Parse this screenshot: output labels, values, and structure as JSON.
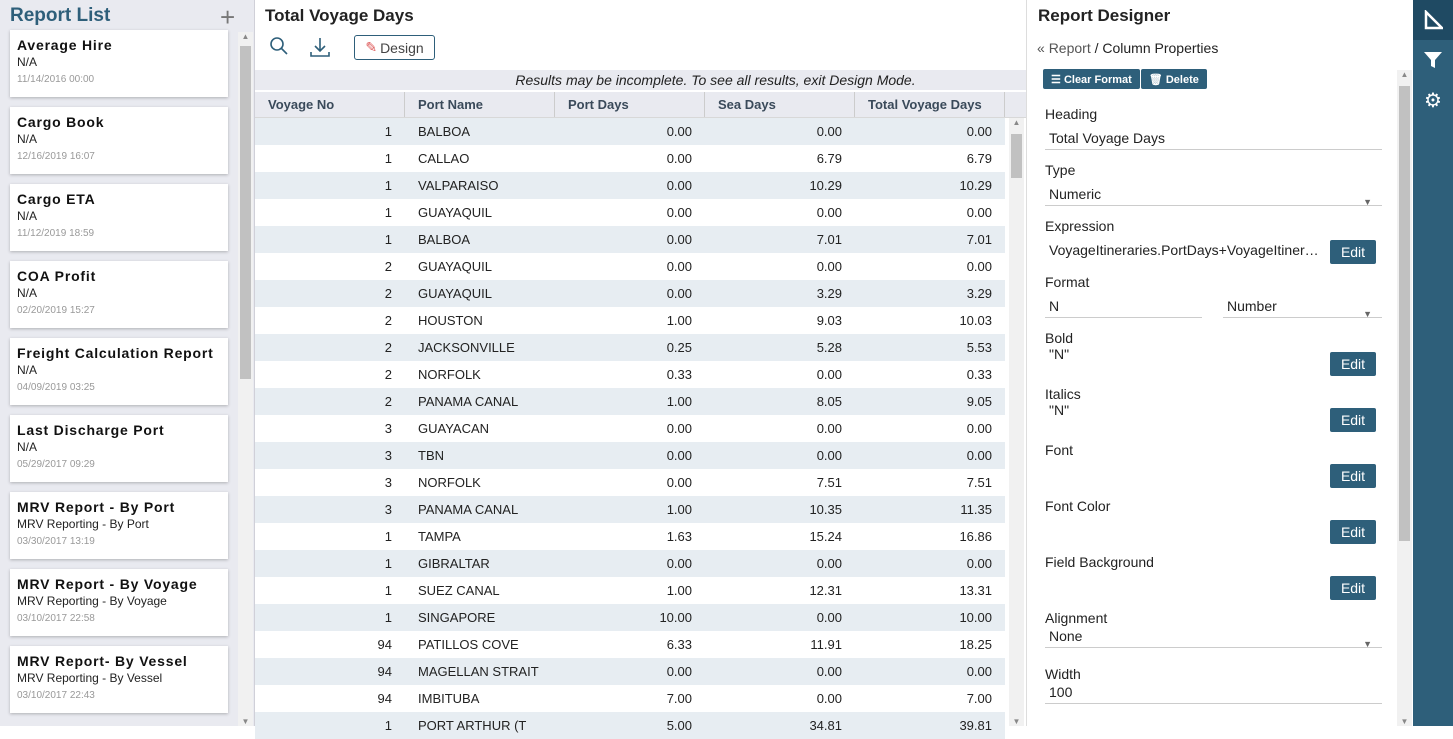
{
  "left": {
    "title": "Report List",
    "add_icon": "plus-icon",
    "reports": [
      {
        "name": "Average Hire",
        "sub": "N/A",
        "date": "11/14/2016 00:00"
      },
      {
        "name": "Cargo Book",
        "sub": "N/A",
        "date": "12/16/2019 16:07"
      },
      {
        "name": "Cargo ETA",
        "sub": "N/A",
        "date": "11/12/2019 18:59"
      },
      {
        "name": "COA Profit",
        "sub": "N/A",
        "date": "02/20/2019 15:27"
      },
      {
        "name": "Freight Calculation Report",
        "sub": "N/A",
        "date": "04/09/2019 03:25"
      },
      {
        "name": "Last Discharge Port",
        "sub": "N/A",
        "date": "05/29/2017 09:29"
      },
      {
        "name": "MRV Report - By Port",
        "sub": "MRV Reporting - By Port",
        "date": "03/30/2017 13:19"
      },
      {
        "name": "MRV Report - By Voyage",
        "sub": "MRV Reporting - By Voyage",
        "date": "03/10/2017 22:58"
      },
      {
        "name": "MRV Report- By Vessel",
        "sub": "MRV Reporting - By Vessel",
        "date": "03/10/2017 22:43"
      }
    ]
  },
  "main": {
    "title": "Total Voyage Days",
    "design_label": "Design",
    "banner": "Results may be incomplete. To see all results, exit Design Mode.",
    "columns": [
      "Voyage No",
      "Port Name",
      "Port Days",
      "Sea Days",
      "Total Voyage Days"
    ],
    "rows": [
      [
        "1",
        "BALBOA",
        "0.00",
        "0.00",
        "0.00"
      ],
      [
        "1",
        "CALLAO",
        "0.00",
        "6.79",
        "6.79"
      ],
      [
        "1",
        "VALPARAISO",
        "0.00",
        "10.29",
        "10.29"
      ],
      [
        "1",
        "GUAYAQUIL",
        "0.00",
        "0.00",
        "0.00"
      ],
      [
        "1",
        "BALBOA",
        "0.00",
        "7.01",
        "7.01"
      ],
      [
        "2",
        "GUAYAQUIL",
        "0.00",
        "0.00",
        "0.00"
      ],
      [
        "2",
        "GUAYAQUIL",
        "0.00",
        "3.29",
        "3.29"
      ],
      [
        "2",
        "HOUSTON",
        "1.00",
        "9.03",
        "10.03"
      ],
      [
        "2",
        "JACKSONVILLE",
        "0.25",
        "5.28",
        "5.53"
      ],
      [
        "2",
        "NORFOLK",
        "0.33",
        "0.00",
        "0.33"
      ],
      [
        "2",
        "PANAMA CANAL",
        "1.00",
        "8.05",
        "9.05"
      ],
      [
        "3",
        "GUAYACAN",
        "0.00",
        "0.00",
        "0.00"
      ],
      [
        "3",
        "TBN",
        "0.00",
        "0.00",
        "0.00"
      ],
      [
        "3",
        "NORFOLK",
        "0.00",
        "7.51",
        "7.51"
      ],
      [
        "3",
        "PANAMA CANAL",
        "1.00",
        "10.35",
        "11.35"
      ],
      [
        "1",
        "TAMPA",
        "1.63",
        "15.24",
        "16.86"
      ],
      [
        "1",
        "GIBRALTAR",
        "0.00",
        "0.00",
        "0.00"
      ],
      [
        "1",
        "SUEZ CANAL",
        "1.00",
        "12.31",
        "13.31"
      ],
      [
        "1",
        "SINGAPORE",
        "10.00",
        "0.00",
        "10.00"
      ],
      [
        "94",
        "PATILLOS COVE",
        "6.33",
        "11.91",
        "18.25"
      ],
      [
        "94",
        "MAGELLAN STRAIT",
        "0.00",
        "0.00",
        "0.00"
      ],
      [
        "94",
        "IMBITUBA",
        "7.00",
        "0.00",
        "7.00"
      ],
      [
        "1",
        "PORT ARTHUR (T",
        "5.00",
        "34.81",
        "39.81"
      ]
    ]
  },
  "designer": {
    "title": "Report Designer",
    "crumb_back": "Report",
    "crumb_sep": "/",
    "crumb_current": "Column Properties",
    "clear_format": "Clear Format",
    "delete": "Delete",
    "edit_label": "Edit",
    "heading_label": "Heading",
    "heading": "Total Voyage Days",
    "type_label": "Type",
    "type": "Numeric",
    "expression_label": "Expression",
    "expression": "VoyageItineraries.PortDays+VoyageItineraries.SeaDays",
    "format_label": "Format",
    "format": "N",
    "format_type": "Number",
    "bold_label": "Bold",
    "bold": "\"N\"",
    "italics_label": "Italics",
    "italics": "\"N\"",
    "font_label": "Font",
    "font_color_label": "Font Color",
    "field_bg_label": "Field Background",
    "alignment_label": "Alignment",
    "alignment": "None",
    "width_label": "Width",
    "width": "100"
  },
  "rail": {
    "icons": [
      "set-square-icon",
      "filter-icon",
      "gear-icon"
    ]
  }
}
